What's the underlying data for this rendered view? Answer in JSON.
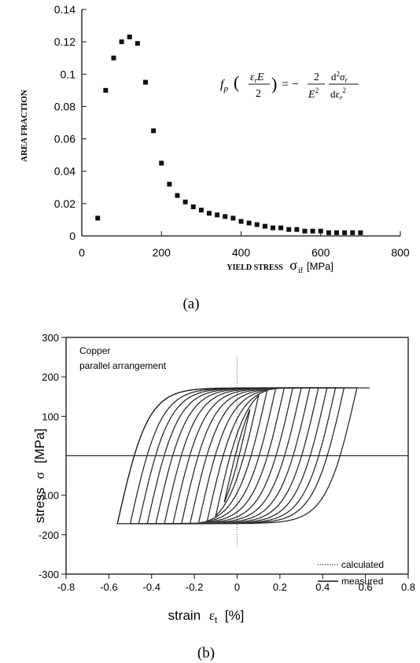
{
  "chart_data": [
    {
      "type": "scatter",
      "panel_label": "(a)",
      "ylabel": "AREA FRACTION",
      "xlabel": "YIELD STRESS",
      "xlabel_symbol": "σ",
      "xlabel_subscript": "if",
      "xlabel_unit": "[MPa]",
      "xlim": [
        0,
        800
      ],
      "ylim": [
        0,
        0.14
      ],
      "xticks": [
        0,
        200,
        400,
        600,
        800
      ],
      "xtick_labels": [
        "0",
        "200",
        "400",
        "600",
        "800"
      ],
      "yticks": [
        0,
        0.02,
        0.04,
        0.06,
        0.08,
        0.1,
        0.12,
        0.14
      ],
      "ytick_labels": [
        "0",
        "0.02",
        "0.04",
        "0.06",
        "0.08",
        "0.1",
        "0.12",
        "0.14"
      ],
      "equation": "f_p(ε_r E / 2) = − (2 / E²) · d²σ_r / dε_r²",
      "series": [
        {
          "x": [
            40,
            60,
            80,
            100,
            120,
            140,
            160,
            180,
            200,
            220,
            240,
            260,
            280,
            300,
            320,
            340,
            360,
            380,
            400,
            420,
            440,
            460,
            480,
            500,
            520,
            540,
            560,
            580,
            600,
            620,
            640,
            660,
            680,
            700
          ],
          "y": [
            0.011,
            0.09,
            0.11,
            0.12,
            0.123,
            0.119,
            0.095,
            0.065,
            0.045,
            0.032,
            0.025,
            0.021,
            0.018,
            0.016,
            0.014,
            0.013,
            0.012,
            0.011,
            0.009,
            0.008,
            0.007,
            0.006,
            0.005,
            0.005,
            0.004,
            0.004,
            0.003,
            0.003,
            0.003,
            0.002,
            0.002,
            0.002,
            0.002,
            0.002
          ]
        }
      ]
    },
    {
      "type": "line",
      "panel_label": "(b)",
      "annotation_lines": [
        "Copper",
        "parallel arrangement"
      ],
      "ylabel": "stress",
      "ylabel_symbol": "σ",
      "ylabel_unit": "[MPa]",
      "xlabel": "strain",
      "xlabel_symbol": "ε",
      "xlabel_subscript": "t",
      "xlabel_unit": "[%]",
      "xlim": [
        -0.8,
        0.8
      ],
      "ylim": [
        -300,
        300
      ],
      "xticks": [
        -0.8,
        -0.6,
        -0.4,
        -0.2,
        0,
        0.2,
        0.4,
        0.6,
        0.8
      ],
      "xtick_labels": [
        "-0.8",
        "-0.6",
        "-0.4",
        "-0.2",
        "0",
        "0.2",
        "0.4",
        "0.6",
        "0.8"
      ],
      "yticks": [
        -300,
        -200,
        -100,
        100,
        200,
        300
      ],
      "ytick_labels": [
        "-300",
        "-200",
        "-100",
        "100",
        "200",
        "300"
      ],
      "legend": [
        {
          "name": "calculated",
          "style": "dotted"
        },
        {
          "name": "measured",
          "style": "solid"
        }
      ],
      "legend_position": "bottom-right",
      "saturation_stress": 172,
      "loop_amplitudes": [
        0.06,
        0.1,
        0.14,
        0.18,
        0.22,
        0.26,
        0.3,
        0.34,
        0.38,
        0.42,
        0.46,
        0.5,
        0.56
      ],
      "outer_branch_end": [
        0.62,
        172
      ]
    }
  ]
}
